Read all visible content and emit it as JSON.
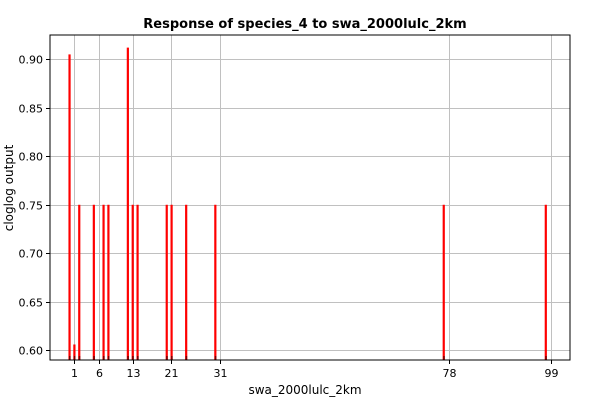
{
  "chart_data": {
    "type": "bar",
    "title": "Response of species_4 to swa_2000lulc_2km",
    "xlabel": "swa_2000lulc_2km",
    "ylabel": "cloglog output",
    "xlim": [
      -4,
      103
    ],
    "ylim": [
      0.59,
      0.925
    ],
    "grid": true,
    "x_ticks": [
      1,
      6,
      13,
      21,
      31,
      78,
      99
    ],
    "y_ticks": [
      0.6,
      0.65,
      0.7,
      0.75,
      0.8,
      0.85,
      0.9
    ],
    "series": [
      {
        "color": "#ff0000",
        "points": [
          {
            "x": 0,
            "y": 0.905
          },
          {
            "x": 1,
            "y": 0.606
          },
          {
            "x": 2,
            "y": 0.75
          },
          {
            "x": 5,
            "y": 0.75
          },
          {
            "x": 7,
            "y": 0.75
          },
          {
            "x": 8,
            "y": 0.75
          },
          {
            "x": 12,
            "y": 0.912
          },
          {
            "x": 13,
            "y": 0.75
          },
          {
            "x": 14,
            "y": 0.75
          },
          {
            "x": 20,
            "y": 0.75
          },
          {
            "x": 21,
            "y": 0.75
          },
          {
            "x": 24,
            "y": 0.75
          },
          {
            "x": 30,
            "y": 0.75
          },
          {
            "x": 77,
            "y": 0.75
          },
          {
            "x": 98,
            "y": 0.75
          }
        ]
      }
    ]
  }
}
